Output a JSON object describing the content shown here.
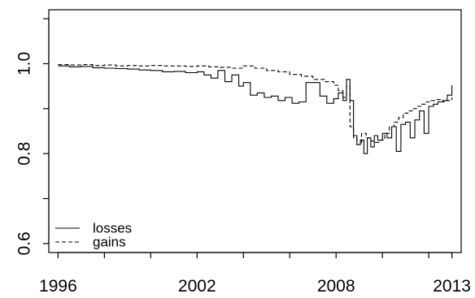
{
  "chart_data": {
    "type": "line",
    "title": "",
    "xlabel": "",
    "ylabel": "",
    "xlim": [
      1995.6,
      2013.4
    ],
    "ylim": [
      0.58,
      1.12
    ],
    "x_ticks": [
      1996,
      1998,
      2000,
      2002,
      2004,
      2006,
      2008,
      2010,
      2012,
      2013
    ],
    "x_tick_labels": [
      {
        "value": 1996,
        "label": "1996"
      },
      {
        "value": 2002,
        "label": "2002"
      },
      {
        "value": 2008,
        "label": "2008"
      },
      {
        "value": 2013,
        "label": "2013"
      }
    ],
    "y_ticks": [
      0.6,
      0.7,
      0.8,
      0.9,
      1.0,
      1.1
    ],
    "y_tick_labels": [
      {
        "value": 0.6,
        "label": "0.6"
      },
      {
        "value": 0.8,
        "label": "0.8"
      },
      {
        "value": 1.0,
        "label": "1.0"
      }
    ],
    "grid": false,
    "legend": "bottom-left",
    "series": [
      {
        "name": "losses",
        "line_style": "solid",
        "color": "#000000",
        "x": [
          1996.0,
          1996.5,
          1997.0,
          1997.5,
          1998.0,
          1998.5,
          1999.0,
          1999.5,
          2000.0,
          2000.5,
          2001.0,
          2001.5,
          2002.0,
          2002.3,
          2002.6,
          2002.9,
          2003.2,
          2003.5,
          2003.8,
          2004.0,
          2004.3,
          2004.6,
          2004.9,
          2005.2,
          2005.5,
          2005.8,
          2006.1,
          2006.4,
          2006.7,
          2007.0,
          2007.3,
          2007.6,
          2007.9,
          2008.1,
          2008.3,
          2008.45,
          2008.6,
          2008.75,
          2008.9,
          2009.05,
          2009.2,
          2009.35,
          2009.5,
          2009.65,
          2009.8,
          2010.0,
          2010.2,
          2010.4,
          2010.6,
          2010.8,
          2011.0,
          2011.2,
          2011.4,
          2011.6,
          2011.8,
          2012.0,
          2012.2,
          2012.4,
          2012.6,
          2012.8,
          2013.0
        ],
        "y": [
          0.995,
          0.993,
          0.994,
          0.991,
          0.99,
          0.989,
          0.988,
          0.986,
          0.985,
          0.982,
          0.983,
          0.98,
          0.982,
          0.975,
          0.968,
          0.985,
          0.96,
          0.975,
          0.95,
          0.958,
          0.93,
          0.935,
          0.925,
          0.928,
          0.918,
          0.925,
          0.912,
          0.915,
          0.958,
          0.958,
          0.928,
          0.912,
          0.922,
          0.935,
          0.918,
          0.965,
          0.918,
          0.84,
          0.82,
          0.83,
          0.8,
          0.835,
          0.815,
          0.84,
          0.83,
          0.845,
          0.835,
          0.86,
          0.805,
          0.865,
          0.87,
          0.835,
          0.875,
          0.895,
          0.845,
          0.905,
          0.91,
          0.915,
          0.918,
          0.93,
          0.952
        ]
      },
      {
        "name": "gains",
        "line_style": "dashed",
        "color": "#000000",
        "x": [
          1996.0,
          1996.5,
          1997.0,
          1997.5,
          1998.0,
          1998.5,
          1999.0,
          1999.5,
          2000.0,
          2000.5,
          2001.0,
          2001.5,
          2002.0,
          2002.5,
          2003.0,
          2003.5,
          2004.0,
          2004.5,
          2005.0,
          2005.5,
          2006.0,
          2006.5,
          2007.0,
          2007.5,
          2007.9,
          2008.1,
          2008.3,
          2008.45,
          2008.6,
          2008.75,
          2008.9,
          2009.1,
          2009.3,
          2009.5,
          2009.7,
          2009.9,
          2010.1,
          2010.3,
          2010.5,
          2010.7,
          2010.9,
          2011.1,
          2011.3,
          2011.5,
          2011.7,
          2011.9,
          2012.1,
          2012.3,
          2012.5,
          2012.7,
          2013.0
        ],
        "y": [
          0.998,
          0.997,
          0.998,
          0.996,
          0.997,
          0.995,
          0.996,
          0.995,
          0.996,
          0.995,
          0.995,
          0.994,
          0.995,
          0.993,
          0.992,
          0.99,
          0.995,
          0.99,
          0.985,
          0.982,
          0.976,
          0.972,
          0.965,
          0.96,
          0.952,
          0.94,
          0.925,
          0.95,
          0.86,
          0.835,
          0.82,
          0.845,
          0.835,
          0.828,
          0.825,
          0.83,
          0.845,
          0.86,
          0.87,
          0.88,
          0.89,
          0.895,
          0.9,
          0.905,
          0.91,
          0.915,
          0.918,
          0.92,
          0.915,
          0.918,
          0.925
        ]
      }
    ]
  }
}
